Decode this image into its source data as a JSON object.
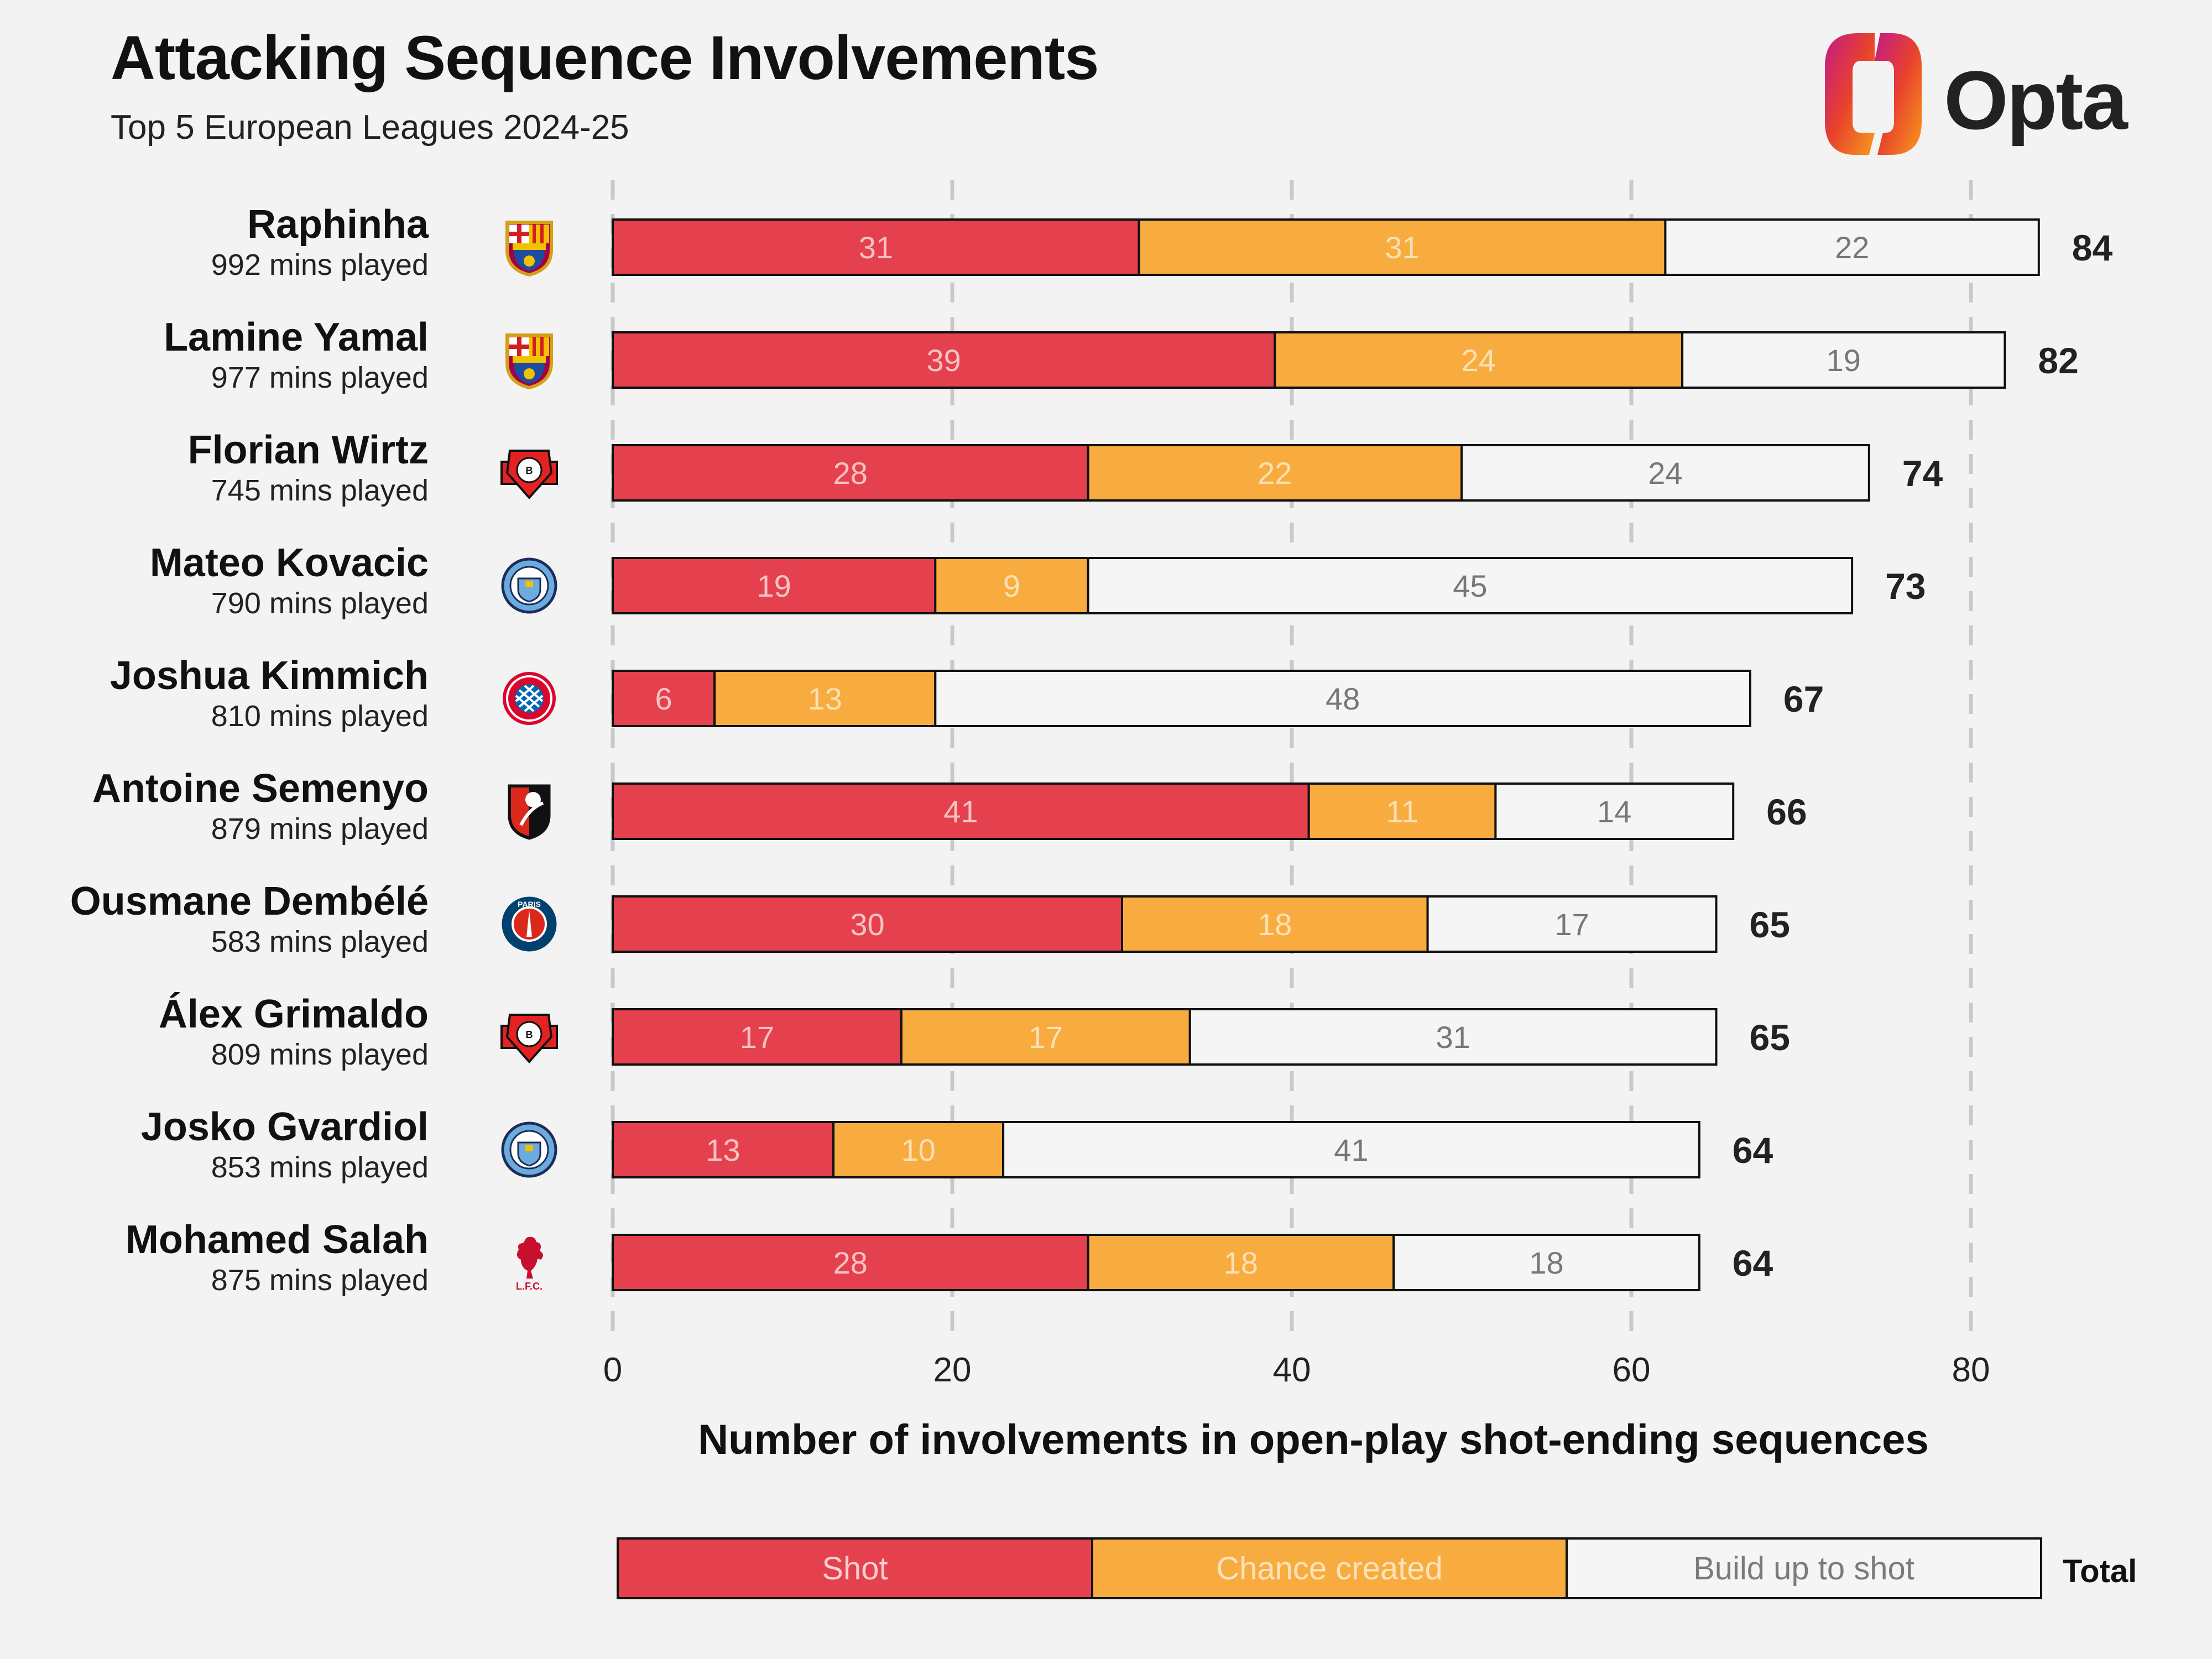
{
  "title": "Attacking Sequence Involvements",
  "subtitle": "Top 5 European Leagues 2024-25",
  "brand": {
    "name": "Opta"
  },
  "colors": {
    "shot": "#e5404d",
    "chance": "#f8ac3f",
    "buildup": "#f5f5f5",
    "background": "#f3f3f3",
    "grid": "#c9c9c9"
  },
  "players": [
    {
      "name": "Raphinha",
      "mins": "992 mins played",
      "crest": "barcelona-crest-icon"
    },
    {
      "name": "Lamine Yamal",
      "mins": "977 mins played",
      "crest": "barcelona-crest-icon"
    },
    {
      "name": "Florian Wirtz",
      "mins": "745 mins played",
      "crest": "leverkusen-crest-icon"
    },
    {
      "name": "Mateo Kovacic",
      "mins": "790 mins played",
      "crest": "man-city-crest-icon"
    },
    {
      "name": "Joshua Kimmich",
      "mins": "810 mins played",
      "crest": "bayern-crest-icon"
    },
    {
      "name": "Antoine Semenyo",
      "mins": "879 mins played",
      "crest": "bournemouth-crest-icon"
    },
    {
      "name": "Ousmane Dembélé",
      "mins": "583 mins played",
      "crest": "psg-crest-icon"
    },
    {
      "name": "Álex Grimaldo",
      "mins": "809 mins played",
      "crest": "leverkusen-crest-icon"
    },
    {
      "name": "Josko Gvardiol",
      "mins": "853 mins played",
      "crest": "man-city-crest-icon"
    },
    {
      "name": "Mohamed Salah",
      "mins": "875 mins played",
      "crest": "liverpool-crest-icon"
    }
  ],
  "chart_data": {
    "type": "bar",
    "orientation": "horizontal",
    "stacked": true,
    "categories": [
      "Raphinha",
      "Lamine Yamal",
      "Florian Wirtz",
      "Mateo Kovacic",
      "Joshua Kimmich",
      "Antoine Semenyo",
      "Ousmane Dembélé",
      "Álex Grimaldo",
      "Josko Gvardiol",
      "Mohamed Salah"
    ],
    "series": [
      {
        "name": "Shot",
        "values": [
          31,
          39,
          28,
          19,
          6,
          41,
          30,
          17,
          13,
          28
        ]
      },
      {
        "name": "Chance created",
        "values": [
          31,
          24,
          22,
          9,
          13,
          11,
          18,
          17,
          10,
          18
        ]
      },
      {
        "name": "Build up to shot",
        "values": [
          22,
          19,
          24,
          45,
          48,
          14,
          17,
          31,
          41,
          18
        ]
      }
    ],
    "totals": [
      84,
      82,
      74,
      73,
      67,
      66,
      65,
      65,
      64,
      64
    ],
    "xlabel": "Number of involvements in open-play shot-ending sequences",
    "xlim": [
      0,
      80
    ],
    "xticks": [
      0,
      20,
      40,
      60,
      80
    ],
    "grid": "vertical dashed",
    "legend": {
      "position": "bottom",
      "total_label": "Total"
    }
  }
}
